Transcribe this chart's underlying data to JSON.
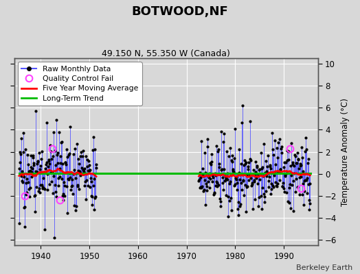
{
  "title": "BOTWOOD,NF",
  "subtitle": "49.150 N, 55.350 W (Canada)",
  "ylabel": "Temperature Anomaly (°C)",
  "credit": "Berkeley Earth",
  "ylim": [
    -6.5,
    10.5
  ],
  "yticks": [
    -6,
    -4,
    -2,
    0,
    2,
    4,
    6,
    8,
    10
  ],
  "xlim": [
    1934.5,
    1997
  ],
  "xticks": [
    1940,
    1950,
    1960,
    1970,
    1980,
    1990
  ],
  "fig_bg_color": "#d8d8d8",
  "plot_bg_color": "#d8d8d8",
  "grid_color": "#ffffff",
  "line_color_raw": "#5555ff",
  "dot_color_raw": "#000000",
  "moving_avg_color": "#ff0000",
  "trend_color": "#00bb00",
  "qc_fail_color": "#ff44ff",
  "period1_start": 1935.5,
  "period1_end": 1951.5,
  "period2_start": 1972.5,
  "period2_end": 1995.5
}
